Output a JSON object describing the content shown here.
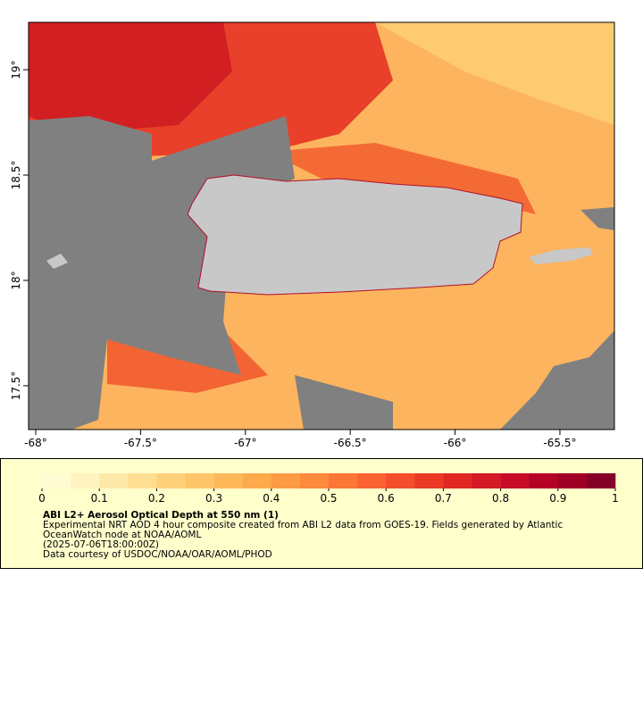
{
  "map": {
    "xlim": [
      -68.034,
      -65.24
    ],
    "ylim": [
      17.292,
      19.225
    ],
    "xticks": [
      {
        "value": -68,
        "label": "-68°"
      },
      {
        "value": -67.5,
        "label": "-67.5°"
      },
      {
        "value": -67,
        "label": "-67°"
      },
      {
        "value": -66.5,
        "label": "-66.5°"
      },
      {
        "value": -66,
        "label": "-66°"
      },
      {
        "value": -65.5,
        "label": "-65.5°"
      }
    ],
    "yticks": [
      {
        "value": 17.5,
        "label": "17.5°"
      },
      {
        "value": 18,
        "label": "18°"
      },
      {
        "value": 18.5,
        "label": "18.5°"
      },
      {
        "value": 19,
        "label": "19°"
      }
    ]
  },
  "colorbar": {
    "lim": [
      0,
      1
    ],
    "ticks": [
      0,
      0.1,
      0.2,
      0.3,
      0.4,
      0.5,
      0.6,
      0.7,
      0.8,
      0.9,
      1
    ],
    "colors": [
      "#fffbd2",
      "#fff3bf",
      "#ffe9a8",
      "#fedf92",
      "#fed27b",
      "#fec669",
      "#feb859",
      "#fdaa4c",
      "#fd9a44",
      "#fd8a3d",
      "#fc7636",
      "#fb6231",
      "#f44d2b",
      "#eb3a25",
      "#e02721",
      "#d41a24",
      "#c60c26",
      "#b50326",
      "#a00026",
      "#850026"
    ]
  },
  "legend": {
    "title": "ABI L2+ Aerosol Optical Depth at 550 nm (1)",
    "lines": [
      "Experimental NRT AOD 4 hour composite created from ABI L2 data from GOES-19. Fields generated by Atlantic",
      "OceanWatch node at NOAA/AOML",
      "(2025-07-06T18:00:00Z)",
      "Data courtesy of USDOC/NOAA/OAR/AOML/PHOD"
    ]
  }
}
